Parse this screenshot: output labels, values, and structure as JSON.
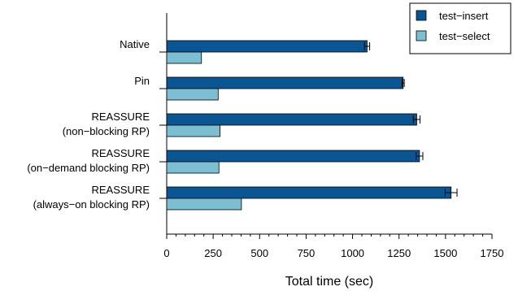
{
  "chart_data": {
    "type": "bar",
    "orientation": "horizontal",
    "categories": [
      [
        "Native"
      ],
      [
        "Pin"
      ],
      [
        "REASSURE",
        "(non−blocking RP)"
      ],
      [
        "REASSURE",
        "(on−demand blocking RP)"
      ],
      [
        "REASSURE",
        "(always−on blocking RP)"
      ]
    ],
    "series": [
      {
        "name": "test−insert",
        "color": "#0a5694",
        "values": [
          1078,
          1272,
          1345,
          1360,
          1530
        ],
        "error": [
          14,
          6,
          18,
          18,
          32
        ]
      },
      {
        "name": "test−select",
        "color": "#7dbfd2",
        "values": [
          187,
          277,
          287,
          281,
          402
        ]
      }
    ],
    "xlabel": "Total time (sec)",
    "ylabel": "",
    "xlim": [
      0,
      1750
    ],
    "xticks": [
      0,
      250,
      500,
      750,
      1000,
      1250,
      1500,
      1750
    ],
    "grid": false,
    "legend_position": "top-right"
  }
}
